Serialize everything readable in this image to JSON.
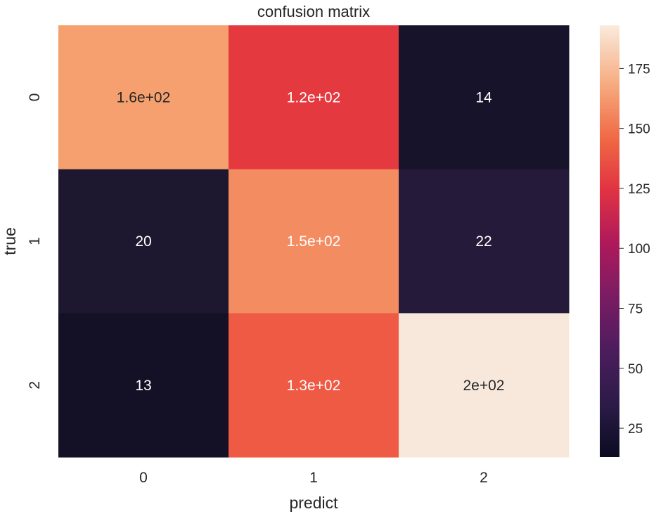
{
  "chart_data": {
    "type": "heatmap",
    "title": "confusion matrix",
    "xlabel": "predict",
    "ylabel": "true",
    "x_categories": [
      "0",
      "1",
      "2"
    ],
    "y_categories": [
      "0",
      "1",
      "2"
    ],
    "values": [
      [
        160,
        120,
        14
      ],
      [
        20,
        150,
        22
      ],
      [
        13,
        130,
        200
      ]
    ],
    "cell_labels": [
      [
        "1.6e+02",
        "1.2e+02",
        "14"
      ],
      [
        "20",
        "1.5e+02",
        "22"
      ],
      [
        "13",
        "1.3e+02",
        "2e+02"
      ]
    ],
    "colormap": "rocket",
    "colorbar": {
      "range": [
        13,
        193
      ],
      "ticks": [
        25,
        50,
        75,
        100,
        125,
        150,
        175
      ]
    },
    "cell_colors": [
      [
        "#f5a06e",
        "#e4393f",
        "#17132a"
      ],
      [
        "#1e1730",
        "#f48c62",
        "#261a3a"
      ],
      [
        "#141126",
        "#ee5a44",
        "#f8e8dc"
      ]
    ],
    "label_colors": [
      [
        "#262626",
        "#ffffff",
        "#ffffff"
      ],
      [
        "#ffffff",
        "#ffffff",
        "#ffffff"
      ],
      [
        "#ffffff",
        "#ffffff",
        "#262626"
      ]
    ]
  }
}
